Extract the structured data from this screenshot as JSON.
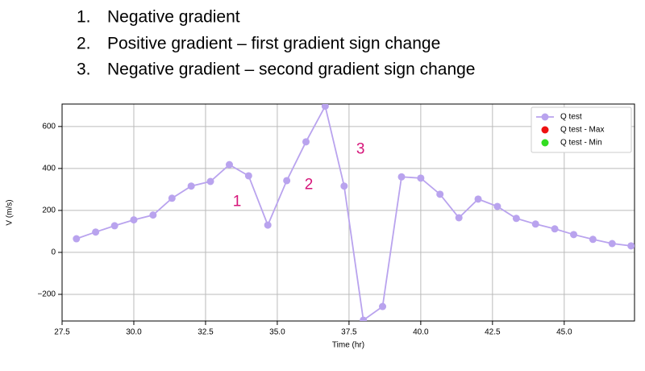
{
  "list": [
    {
      "number": "1.",
      "text": "Negative gradient"
    },
    {
      "number": "2.",
      "text": "Positive gradient – first gradient sign change"
    },
    {
      "number": "3.",
      "text": "Negative gradient – second gradient sign change"
    }
  ],
  "chart_data": {
    "type": "line",
    "x_label": "Time (hr)",
    "y_label": "V (m/s)",
    "x": [
      28.0,
      28.67,
      29.33,
      30.0,
      30.67,
      31.33,
      32.0,
      32.67,
      33.33,
      34.0,
      34.67,
      35.33,
      36.0,
      36.67,
      37.33,
      38.0,
      38.67,
      39.33,
      40.0,
      40.67,
      41.33,
      42.0,
      42.67,
      43.33,
      44.0,
      44.67,
      45.33,
      46.0,
      46.67,
      47.33
    ],
    "series": [
      {
        "name": "Q test",
        "color": "#b9a3ee",
        "values": [
          65,
          97,
          127,
          155,
          178,
          258,
          316,
          338,
          418,
          365,
          130,
          342,
          527,
          697,
          316,
          -323,
          -258,
          360,
          354,
          277,
          165,
          254,
          219,
          162,
          135,
          112,
          85,
          62,
          42,
          31
        ]
      },
      {
        "name": "Q test - Max",
        "color": "#ee1111"
      },
      {
        "name": "Q test - Min",
        "color": "#33dd22"
      }
    ],
    "xlim": [
      27.5,
      47.45
    ],
    "ylim": [
      -327,
      707
    ],
    "xticks": [
      27.5,
      {
        "value": 30,
        "label": "30.0"
      },
      32.5,
      {
        "value": 35,
        "label": "35.0"
      },
      37.5,
      {
        "value": 40,
        "label": "40.0"
      },
      42.5,
      {
        "value": 45,
        "label": "45.0"
      }
    ],
    "yticks": [
      {
        "value": -200,
        "label": "−200"
      },
      0,
      200,
      400,
      600
    ],
    "grid": true,
    "legend": "upper right",
    "annotations": [
      {
        "text": "1",
        "x": 33.6,
        "y": 240
      },
      {
        "text": "2",
        "x": 36.1,
        "y": 320
      },
      {
        "text": "3",
        "x": 37.9,
        "y": 490
      }
    ]
  }
}
